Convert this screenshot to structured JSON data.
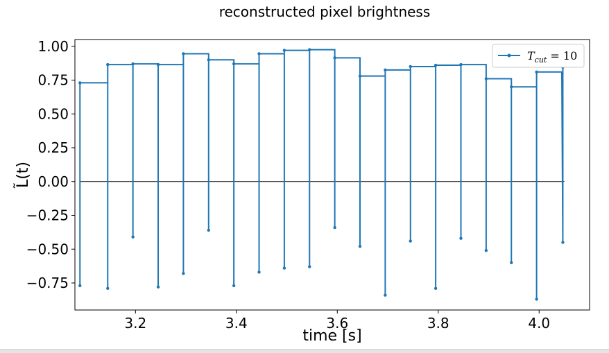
{
  "chart_data": {
    "type": "line",
    "title": "reconstructed pixel brightness",
    "xlabel": "time [s]",
    "ylabel": "L̃(t)",
    "xlim": [
      3.08,
      4.1
    ],
    "ylim": [
      -0.95,
      1.05
    ],
    "xticks": [
      3.2,
      3.4,
      3.6,
      3.8,
      4.0
    ],
    "xtick_labels": [
      "3.2",
      "3.4",
      "3.6",
      "3.8",
      "4.0"
    ],
    "yticks": [
      1.0,
      0.75,
      0.5,
      0.25,
      0.0,
      -0.25,
      -0.5,
      -0.75
    ],
    "ytick_labels": [
      "1.00",
      "0.75",
      "0.50",
      "0.25",
      "0.00",
      "−0.25",
      "−0.50",
      "−0.75"
    ],
    "grid": false,
    "legend_position": "top-right",
    "colors": {
      "series": "#1f77b4",
      "zero_line": "#000000"
    },
    "zero_line": {
      "y": 0.0,
      "x_range": [
        3.09,
        4.05
      ]
    },
    "series": [
      {
        "name": "T_cut = 10",
        "legend_main": "T",
        "legend_sub": "cut",
        "legend_rest": " = 10",
        "segments": [
          {
            "start": 3.09,
            "end": 3.145,
            "min": -0.77,
            "level": 0.73
          },
          {
            "start": 3.145,
            "end": 3.195,
            "min": -0.79,
            "level": 0.865
          },
          {
            "start": 3.195,
            "end": 3.245,
            "min": -0.41,
            "level": 0.87
          },
          {
            "start": 3.245,
            "end": 3.295,
            "min": -0.78,
            "level": 0.865
          },
          {
            "start": 3.295,
            "end": 3.345,
            "min": -0.68,
            "level": 0.945
          },
          {
            "start": 3.345,
            "end": 3.395,
            "min": -0.36,
            "level": 0.9
          },
          {
            "start": 3.395,
            "end": 3.445,
            "min": -0.77,
            "level": 0.87
          },
          {
            "start": 3.445,
            "end": 3.495,
            "min": -0.67,
            "level": 0.945
          },
          {
            "start": 3.495,
            "end": 3.545,
            "min": -0.64,
            "level": 0.97
          },
          {
            "start": 3.545,
            "end": 3.595,
            "min": -0.63,
            "level": 0.975
          },
          {
            "start": 3.595,
            "end": 3.645,
            "min": -0.34,
            "level": 0.915
          },
          {
            "start": 3.645,
            "end": 3.695,
            "min": -0.48,
            "level": 0.78
          },
          {
            "start": 3.695,
            "end": 3.745,
            "min": -0.84,
            "level": 0.825
          },
          {
            "start": 3.745,
            "end": 3.795,
            "min": -0.44,
            "level": 0.85
          },
          {
            "start": 3.795,
            "end": 3.845,
            "min": -0.79,
            "level": 0.86
          },
          {
            "start": 3.845,
            "end": 3.895,
            "min": -0.42,
            "level": 0.865
          },
          {
            "start": 3.895,
            "end": 3.945,
            "min": -0.51,
            "level": 0.76
          },
          {
            "start": 3.945,
            "end": 3.995,
            "min": -0.6,
            "level": 0.7
          },
          {
            "start": 3.995,
            "end": 4.045,
            "min": -0.87,
            "level": 0.81
          }
        ],
        "final": {
          "x": 4.047,
          "min": -0.45,
          "level": 0.845
        }
      }
    ]
  }
}
